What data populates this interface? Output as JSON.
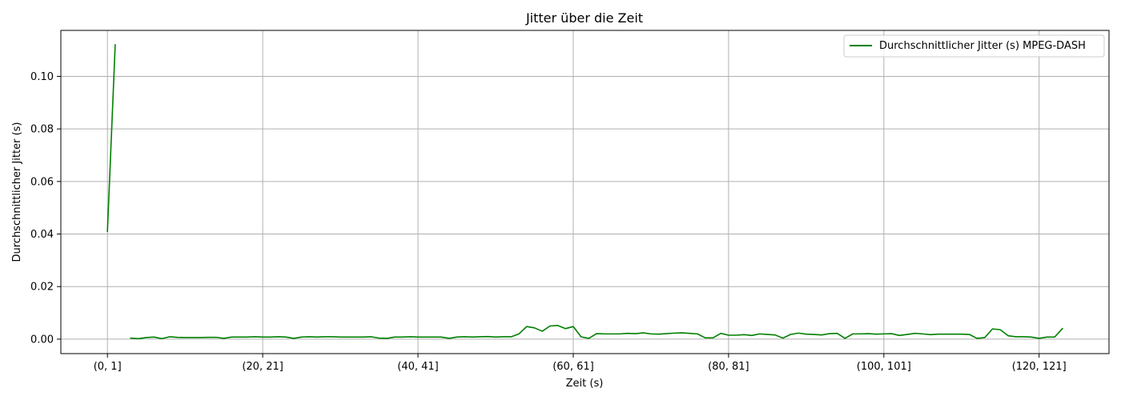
{
  "chart_data": {
    "type": "line",
    "title": "Jitter über die Zeit",
    "xlabel": "Zeit (s)",
    "ylabel": "Durchschnittlicher Jitter (s)",
    "ylim": [
      -0.0055,
      0.1175
    ],
    "yticks": [
      0.0,
      0.02,
      0.04,
      0.06,
      0.08,
      0.1
    ],
    "ytick_labels": [
      "0.00",
      "0.02",
      "0.04",
      "0.06",
      "0.08",
      "0.10"
    ],
    "xlim": [
      -6,
      129
    ],
    "xtick_positions": [
      0,
      20,
      40,
      60,
      80,
      100,
      120
    ],
    "xtick_labels": [
      "(0, 1]",
      "(20, 21]",
      "(40, 41]",
      "(60, 61]",
      "(80, 81]",
      "(100, 101]",
      "(120, 121]"
    ],
    "grid": true,
    "legend_position": "top-right",
    "series": [
      {
        "name": "Durchschnittlicher Jitter (s) MPEG-DASH",
        "color": "#008000",
        "segments": [
          [
            [
              0,
              0.041
            ],
            [
              1,
              0.112
            ]
          ],
          [
            [
              3,
              0.0004
            ],
            [
              4,
              0.0002
            ],
            [
              5,
              0.0006
            ],
            [
              6,
              0.0008
            ],
            [
              7,
              0.0002
            ],
            [
              8,
              0.0009
            ],
            [
              9,
              0.0007
            ],
            [
              10,
              0.0006
            ],
            [
              11,
              0.0006
            ],
            [
              12,
              0.0006
            ],
            [
              13,
              0.0007
            ],
            [
              14,
              0.0007
            ],
            [
              15,
              0.0003
            ],
            [
              16,
              0.0008
            ],
            [
              17,
              0.0008
            ],
            [
              18,
              0.0008
            ],
            [
              19,
              0.0009
            ],
            [
              20,
              0.0008
            ],
            [
              21,
              0.0008
            ],
            [
              22,
              0.0009
            ],
            [
              23,
              0.0008
            ],
            [
              24,
              0.0003
            ],
            [
              25,
              0.0008
            ],
            [
              26,
              0.0009
            ],
            [
              27,
              0.0008
            ],
            [
              28,
              0.0009
            ],
            [
              29,
              0.0009
            ],
            [
              30,
              0.0008
            ],
            [
              31,
              0.0008
            ],
            [
              32,
              0.0008
            ],
            [
              33,
              0.0008
            ],
            [
              34,
              0.0009
            ],
            [
              35,
              0.0004
            ],
            [
              36,
              0.0003
            ],
            [
              37,
              0.0008
            ],
            [
              38,
              0.0008
            ],
            [
              39,
              0.0009
            ],
            [
              40,
              0.0008
            ],
            [
              41,
              0.0008
            ],
            [
              42,
              0.0008
            ],
            [
              43,
              0.0008
            ],
            [
              44,
              0.0003
            ],
            [
              45,
              0.0008
            ],
            [
              46,
              0.0009
            ],
            [
              47,
              0.0008
            ],
            [
              48,
              0.0009
            ],
            [
              49,
              0.001
            ],
            [
              50,
              0.0008
            ],
            [
              51,
              0.0009
            ],
            [
              52,
              0.0009
            ],
            [
              53,
              0.002
            ],
            [
              54,
              0.0048
            ],
            [
              55,
              0.0043
            ],
            [
              56,
              0.003
            ],
            [
              57,
              0.005
            ],
            [
              58,
              0.0052
            ],
            [
              59,
              0.004
            ],
            [
              60,
              0.0048
            ],
            [
              61,
              0.0009
            ],
            [
              62,
              0.0003
            ],
            [
              63,
              0.0021
            ],
            [
              64,
              0.002
            ],
            [
              65,
              0.002
            ],
            [
              66,
              0.002
            ],
            [
              67,
              0.0022
            ],
            [
              68,
              0.0021
            ],
            [
              69,
              0.0024
            ],
            [
              70,
              0.002
            ],
            [
              71,
              0.0019
            ],
            [
              72,
              0.0021
            ],
            [
              73,
              0.0023
            ],
            [
              74,
              0.0024
            ],
            [
              75,
              0.0022
            ],
            [
              76,
              0.002
            ],
            [
              77,
              0.0005
            ],
            [
              78,
              0.0005
            ],
            [
              79,
              0.0022
            ],
            [
              80,
              0.0015
            ],
            [
              81,
              0.0015
            ],
            [
              82,
              0.0017
            ],
            [
              83,
              0.0014
            ],
            [
              84,
              0.002
            ],
            [
              85,
              0.0018
            ],
            [
              86,
              0.0016
            ],
            [
              87,
              0.0004
            ],
            [
              88,
              0.0018
            ],
            [
              89,
              0.0023
            ],
            [
              90,
              0.0019
            ],
            [
              91,
              0.0018
            ],
            [
              92,
              0.0016
            ],
            [
              93,
              0.0021
            ],
            [
              94,
              0.0022
            ],
            [
              95,
              0.0003
            ],
            [
              96,
              0.002
            ],
            [
              97,
              0.002
            ],
            [
              98,
              0.0021
            ],
            [
              99,
              0.0019
            ],
            [
              100,
              0.002
            ],
            [
              101,
              0.0021
            ],
            [
              102,
              0.0014
            ],
            [
              103,
              0.0018
            ],
            [
              104,
              0.0022
            ],
            [
              105,
              0.002
            ],
            [
              106,
              0.0017
            ],
            [
              107,
              0.0019
            ],
            [
              108,
              0.0019
            ],
            [
              109,
              0.0019
            ],
            [
              110,
              0.0019
            ],
            [
              111,
              0.0018
            ],
            [
              112,
              0.0003
            ],
            [
              113,
              0.0006
            ],
            [
              114,
              0.0039
            ],
            [
              115,
              0.0036
            ],
            [
              116,
              0.0013
            ],
            [
              117,
              0.0009
            ],
            [
              118,
              0.0009
            ],
            [
              119,
              0.0008
            ],
            [
              120,
              0.0003
            ],
            [
              121,
              0.0008
            ],
            [
              122,
              0.0008
            ],
            [
              123,
              0.004
            ]
          ]
        ]
      }
    ]
  }
}
